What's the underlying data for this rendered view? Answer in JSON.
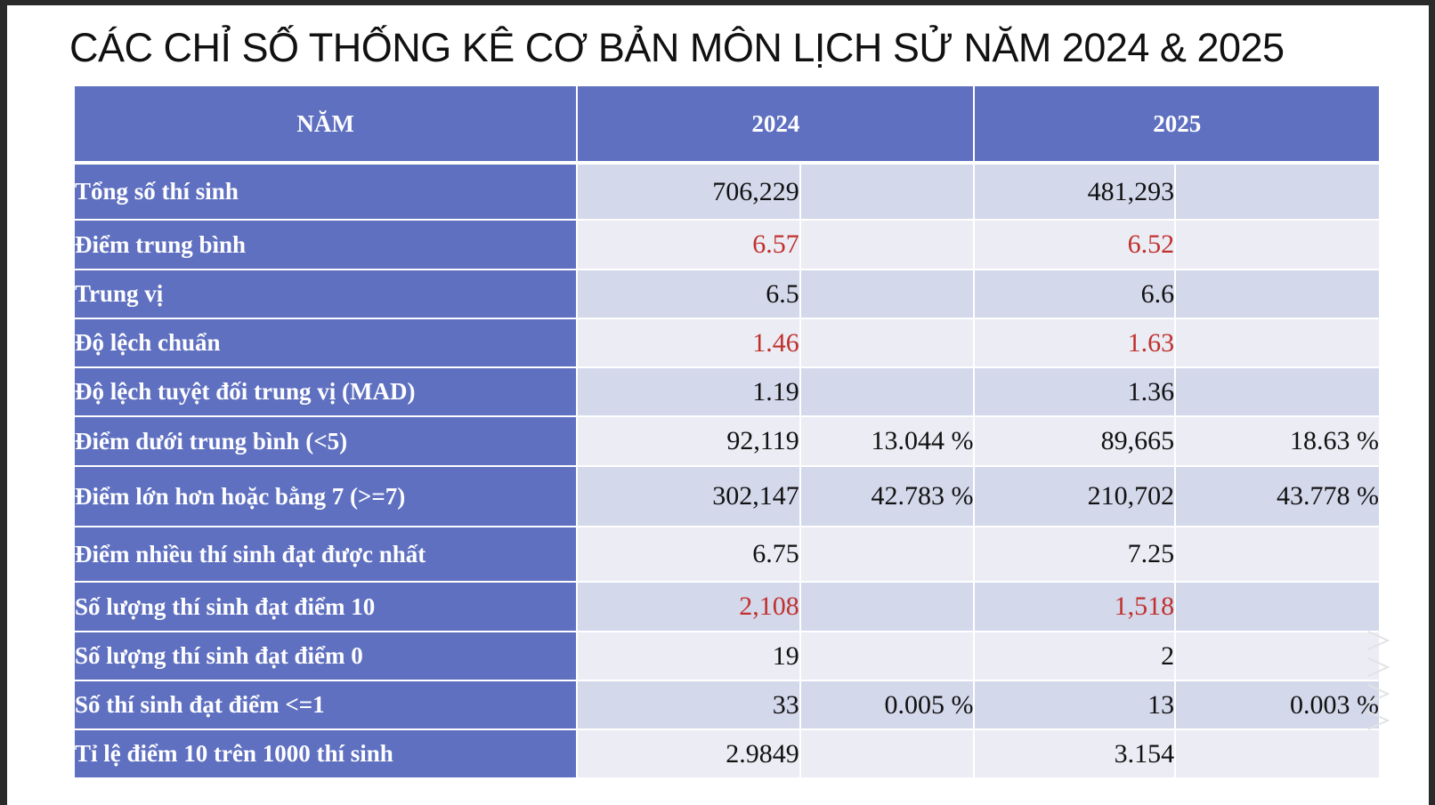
{
  "title": "CÁC CHỈ SỐ THỐNG KÊ CƠ BẢN MÔN LỊCH SỬ NĂM 2024 & 2025",
  "table": {
    "headers": [
      "NĂM",
      "2024",
      "2025"
    ],
    "rows": [
      {
        "label": "Tổng số thí sinh",
        "v2024": "706,229",
        "p2024": "",
        "v2025": "481,293",
        "p2025": "",
        "highlight": false
      },
      {
        "label": "Điểm trung bình",
        "v2024": "6.57",
        "p2024": "",
        "v2025": "6.52",
        "p2025": "",
        "highlight": true
      },
      {
        "label": "Trung vị",
        "v2024": "6.5",
        "p2024": "",
        "v2025": "6.6",
        "p2025": "",
        "highlight": false
      },
      {
        "label": "Độ lệch chuẩn",
        "v2024": "1.46",
        "p2024": "",
        "v2025": "1.63",
        "p2025": "",
        "highlight": true
      },
      {
        "label": "Độ lệch tuyệt đối trung vị (MAD)",
        "v2024": "1.19",
        "p2024": "",
        "v2025": "1.36",
        "p2025": "",
        "highlight": false
      },
      {
        "label": "Điểm dưới trung bình (<5)",
        "v2024": "92,119",
        "p2024": "13.044 %",
        "v2025": "89,665",
        "p2025": "18.63 %",
        "highlight": false
      },
      {
        "label": "Điểm lớn hơn hoặc bằng 7 (>=7)",
        "v2024": "302,147",
        "p2024": "42.783 %",
        "v2025": "210,702",
        "p2025": "43.778 %",
        "highlight": false
      },
      {
        "label": "Điểm nhiều thí sinh đạt được nhất",
        "v2024": "6.75",
        "p2024": "",
        "v2025": "7.25",
        "p2025": "",
        "highlight": false
      },
      {
        "label": "Số lượng thí sinh đạt điểm 10",
        "v2024": "2,108",
        "p2024": "",
        "v2025": "1,518",
        "p2025": "",
        "highlight": true
      },
      {
        "label": "Số lượng thí sinh đạt điểm 0",
        "v2024": "19",
        "p2024": "",
        "v2025": "2",
        "p2025": "",
        "highlight": false
      },
      {
        "label": "Số thí sinh đạt điểm <=1",
        "v2024": "33",
        "p2024": "0.005 %",
        "v2025": "13",
        "p2025": "0.003 %",
        "highlight": false
      },
      {
        "label": "Tỉ lệ điểm 10 trên 1000 thí sinh",
        "v2024": "2.9849",
        "p2024": "",
        "v2025": "3.154",
        "p2025": "",
        "highlight": false
      }
    ]
  },
  "colors": {
    "header_bg": "#5f70c1",
    "row_dark": "#d4d8eb",
    "row_light": "#ebecf4",
    "highlight_text": "#c0312d"
  }
}
